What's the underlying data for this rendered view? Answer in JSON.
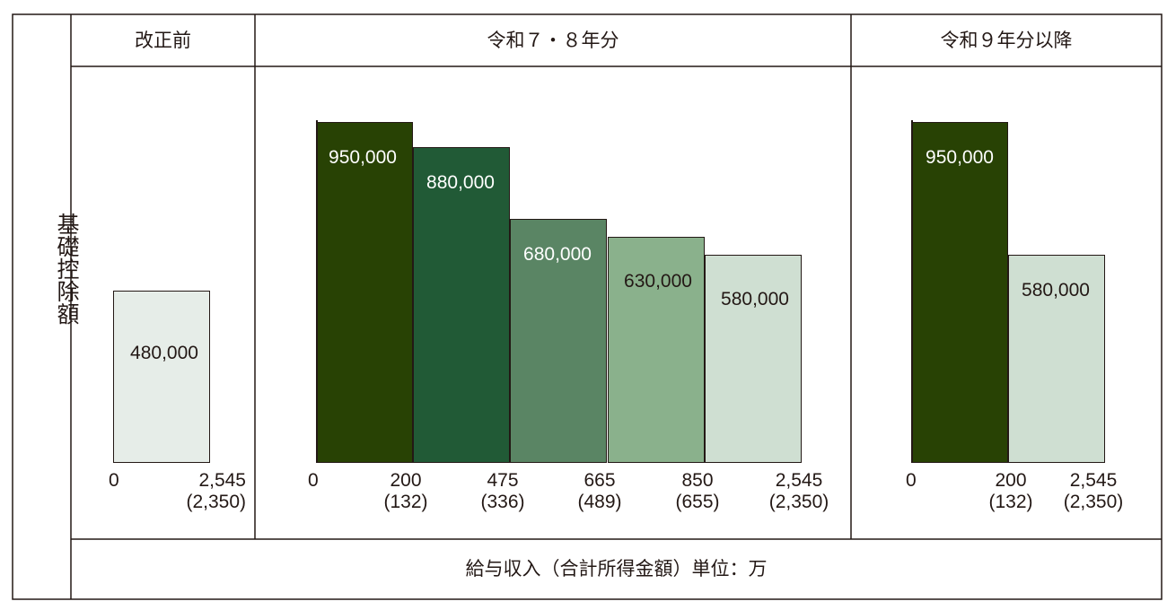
{
  "colors": {
    "dark1": "#284204",
    "dark2": "#215a36",
    "mid": "#5a8564",
    "light": "#8ab18c",
    "pale": "#cfdfd2",
    "pale_before": "#e6ede8",
    "line": "#231815"
  },
  "side_label": "基礎控除額",
  "headers": {
    "before": "改正前",
    "r7_8": "令和７・８年分",
    "r9": "令和９年分以降"
  },
  "footer": "給与収入（合計所得金額）単位：万",
  "chart_data": [
    {
      "type": "bar",
      "panel": "改正前",
      "ylim": [
        0,
        1000000
      ],
      "bars": [
        {
          "value": 480000,
          "label": "480,000",
          "color": "pale_before"
        }
      ],
      "ticks": [
        {
          "main": "0",
          "sub": ""
        },
        {
          "main": "2,545",
          "sub": "(2,350)"
        }
      ]
    },
    {
      "type": "bar",
      "panel": "令和７・８年分",
      "ylim": [
        0,
        1000000
      ],
      "bars": [
        {
          "value": 950000,
          "label": "950,000",
          "color": "dark1"
        },
        {
          "value": 880000,
          "label": "880,000",
          "color": "dark2"
        },
        {
          "value": 680000,
          "label": "680,000",
          "color": "mid"
        },
        {
          "value": 630000,
          "label": "630,000",
          "color": "light"
        },
        {
          "value": 580000,
          "label": "580,000",
          "color": "pale"
        }
      ],
      "ticks": [
        {
          "main": "0",
          "sub": ""
        },
        {
          "main": "200",
          "sub": "(132)"
        },
        {
          "main": "475",
          "sub": "(336)"
        },
        {
          "main": "665",
          "sub": "(489)"
        },
        {
          "main": "850",
          "sub": "(655)"
        },
        {
          "main": "2,545",
          "sub": "(2,350)"
        }
      ]
    },
    {
      "type": "bar",
      "panel": "令和９年分以降",
      "ylim": [
        0,
        1000000
      ],
      "bars": [
        {
          "value": 950000,
          "label": "950,000",
          "color": "dark1"
        },
        {
          "value": 580000,
          "label": "580,000",
          "color": "pale"
        }
      ],
      "ticks": [
        {
          "main": "0",
          "sub": ""
        },
        {
          "main": "200",
          "sub": "(132)"
        },
        {
          "main": "2,545",
          "sub": "(2,350)"
        }
      ]
    }
  ]
}
